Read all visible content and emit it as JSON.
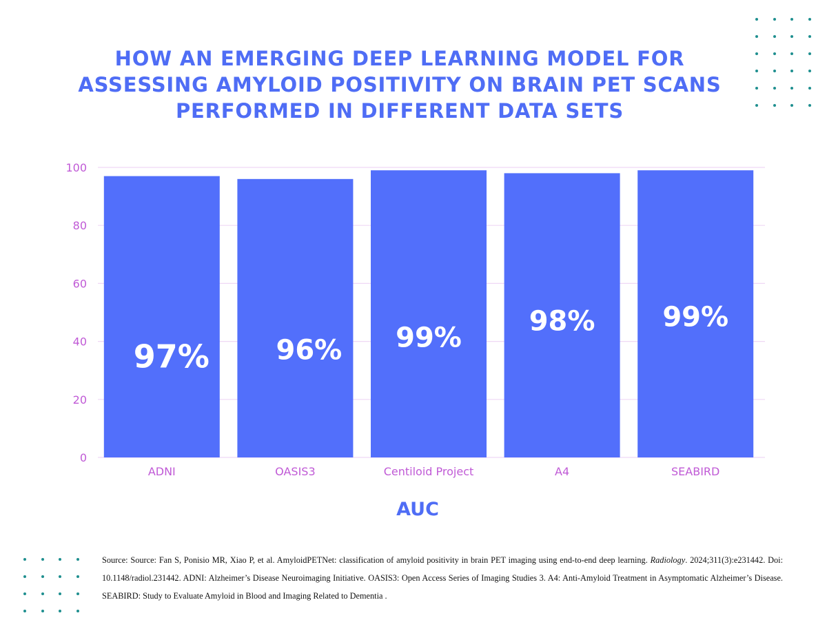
{
  "title_lines": [
    "HOW AN EMERGING DEEP LEARNING MODEL FOR",
    "ASSESSING AMYLOID POSITIVITY ON BRAIN PET SCANS",
    "PERFORMED IN DIFFERENT DATA SETS"
  ],
  "chart_data": {
    "type": "bar",
    "title": "HOW AN EMERGING DEEP LEARNING MODEL FOR ASSESSING AMYLOID POSITIVITY ON BRAIN PET SCANS PERFORMED IN DIFFERENT DATA SETS",
    "categories": [
      "ADNI",
      "OASIS3",
      "Centiloid Project",
      "A4",
      "SEABIRD"
    ],
    "values": [
      97,
      96,
      99,
      98,
      99
    ],
    "data_labels": [
      "97%",
      "96%",
      "99%",
      "98%",
      "99%"
    ],
    "xlabel": "AUC",
    "ylabel": "",
    "ylim": [
      0,
      100
    ],
    "yticks": [
      0,
      20,
      40,
      60,
      80,
      100
    ],
    "grid": true,
    "colors": {
      "bar": "#526ffb",
      "tick": "#c05ad6",
      "axis_title": "#4f6df5",
      "grid": "#efd8f5"
    }
  },
  "source": {
    "prefix": "Source: Source: Fan S, Ponisio MR, Xiao P, et al. AmyloidPETNet: classification of amyloid positivity in brain PET imaging using end-to-end deep learning. ",
    "journal": "Radiology",
    "suffix": ". 2024;311(3):e231442. Doi: 10.1148/radiol.231442.  ADNI: Alzheimer’s Disease Neuroimaging Initiative. OASIS3: Open Access Series of Imaging Studies 3. A4: Anti-Amyloid Treatment in Asymptomatic Alzheimer’s Disease. SEABIRD: Study to Evaluate Amyloid in Blood and Imaging Related to Dementia ."
  },
  "decor": {
    "dot_color": "#1f8f8f"
  }
}
